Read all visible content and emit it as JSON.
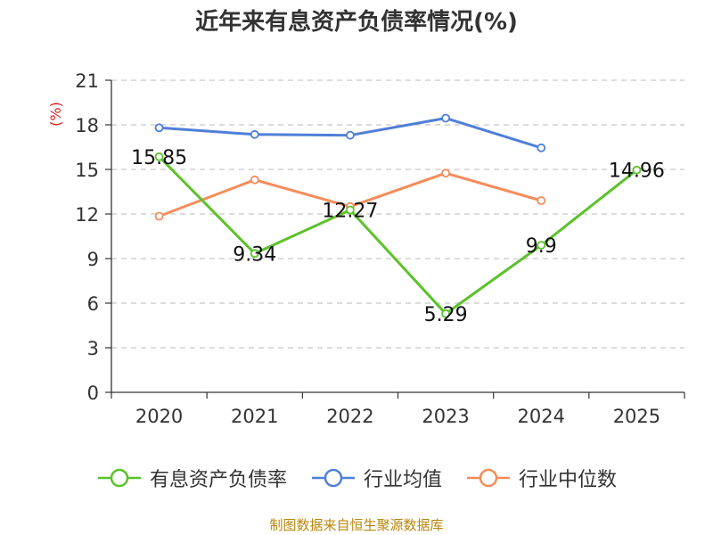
{
  "chart_data": {
    "type": "line",
    "title": "近年来有息资产负债率情况(%)",
    "ylabel": "(%)",
    "xlabel": "",
    "categories": [
      "2020",
      "2021",
      "2022",
      "2023",
      "2024",
      "2025"
    ],
    "yticks": [
      0,
      3,
      6,
      9,
      12,
      15,
      18,
      21
    ],
    "ylim": [
      0,
      21
    ],
    "grid": true,
    "legend_position": "bottom",
    "series": [
      {
        "name": "有息资产负债率",
        "color": "#5cc22a",
        "values": [
          15.85,
          9.34,
          12.27,
          5.29,
          9.9,
          14.96
        ],
        "labels": [
          "15.85",
          "9.34",
          "12.27",
          "5.29",
          "9.9",
          "14.96"
        ]
      },
      {
        "name": "行业均值",
        "color": "#4f7fd8",
        "values": [
          17.8,
          17.35,
          17.3,
          18.45,
          16.45,
          null
        ]
      },
      {
        "name": "行业中位数",
        "color": "#f58c5a",
        "values": [
          11.85,
          14.3,
          12.5,
          14.75,
          12.9,
          null
        ]
      }
    ],
    "source": "制图数据来自恒生聚源数据库"
  }
}
